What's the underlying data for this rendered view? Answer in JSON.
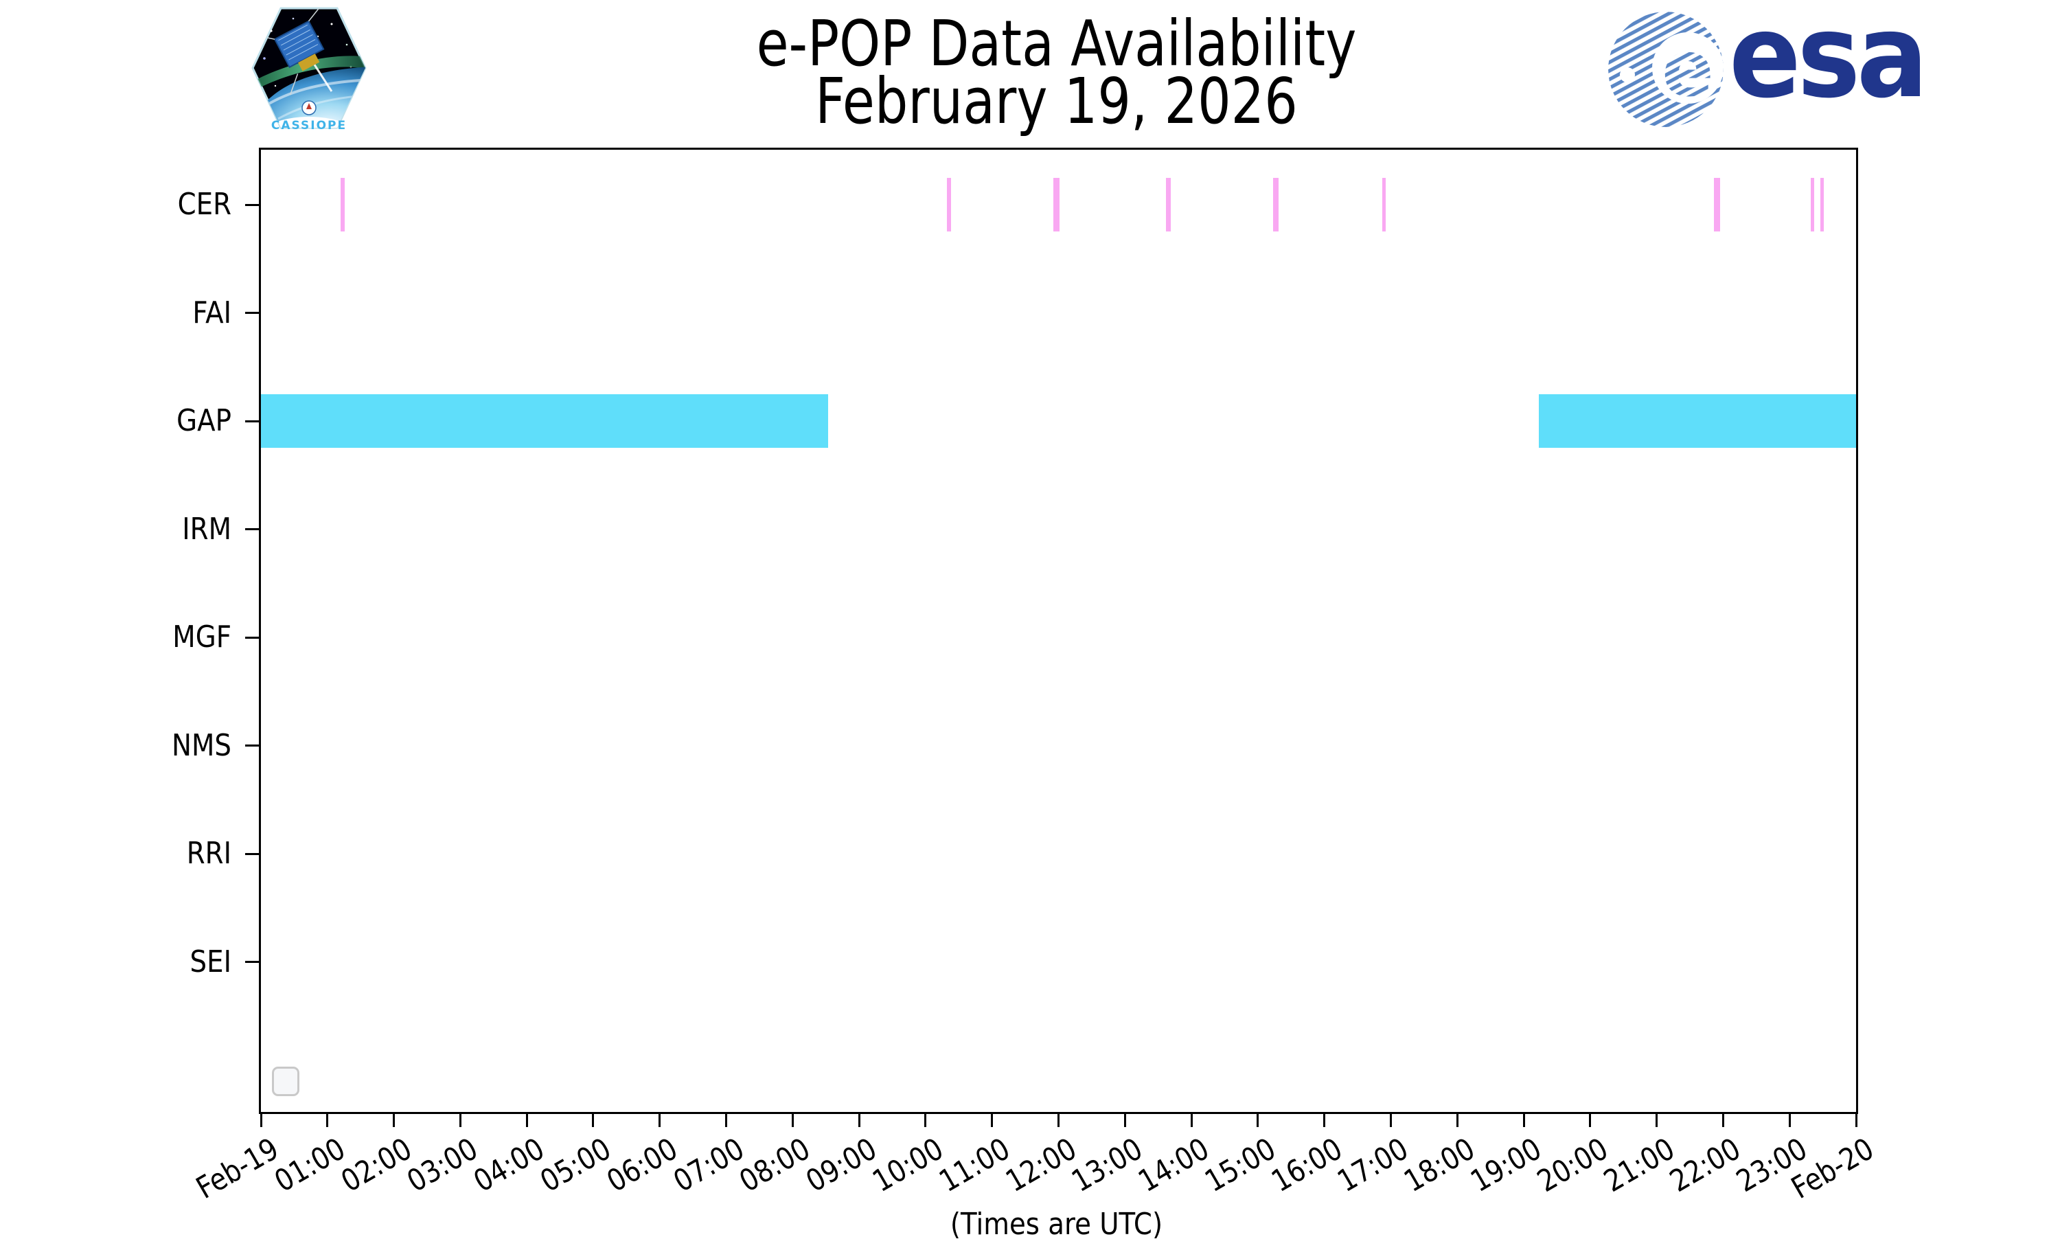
{
  "header": {
    "title_line1": "e-POP Data Availability",
    "title_line2": "February 19, 2026",
    "cassiope_patch_label": "CASSIOPE",
    "esa_logo_text": "esa"
  },
  "chart_data": {
    "type": "timeline",
    "title": "e-POP Data Availability",
    "subtitle": "February 19, 2026",
    "ylabel_categories": [
      "CER",
      "FAI",
      "GAP",
      "IRM",
      "MGF",
      "NMS",
      "RRI",
      "SEI"
    ],
    "x_axis": {
      "label": "(Times are UTC)",
      "tick_labels": [
        "Feb-19",
        "01:00",
        "02:00",
        "03:00",
        "04:00",
        "05:00",
        "06:00",
        "07:00",
        "08:00",
        "09:00",
        "10:00",
        "11:00",
        "12:00",
        "13:00",
        "14:00",
        "15:00",
        "16:00",
        "17:00",
        "18:00",
        "19:00",
        "20:00",
        "21:00",
        "22:00",
        "23:00",
        "Feb-20"
      ],
      "range_hours": [
        0,
        24
      ],
      "grid": false
    },
    "series": [
      {
        "instrument": "CER",
        "color": "#F9A8F2",
        "intervals_hours": [
          [
            1.2,
            1.26
          ],
          [
            10.32,
            10.38
          ],
          [
            11.92,
            12.02
          ],
          [
            13.62,
            13.69
          ],
          [
            15.23,
            15.31
          ],
          [
            16.87,
            16.91
          ],
          [
            21.86,
            21.95
          ],
          [
            23.32,
            23.37
          ],
          [
            23.46,
            23.51
          ]
        ]
      },
      {
        "instrument": "GAP",
        "color": "#5FDEFA",
        "intervals_hours": [
          [
            0.0,
            8.53
          ],
          [
            19.23,
            24.0
          ]
        ]
      }
    ],
    "legend": {
      "visible": true,
      "entries": []
    }
  }
}
